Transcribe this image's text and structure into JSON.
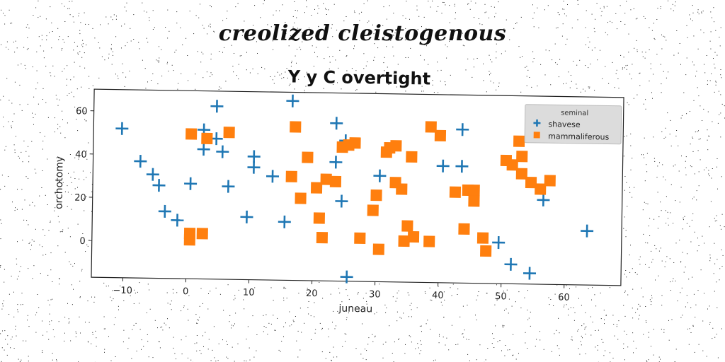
{
  "suptitle": "creolized cleistogenous",
  "chart_data": {
    "type": "scatter",
    "title": "Y y C overtight",
    "xlabel": "juneau",
    "ylabel": "orchotomy",
    "xlim": [
      -15,
      69
    ],
    "ylim": [
      -17,
      70
    ],
    "xticks": [
      -10,
      0,
      10,
      20,
      30,
      40,
      50,
      60
    ],
    "yticks": [
      0,
      20,
      40,
      60
    ],
    "grid": false,
    "legend": {
      "title": "seminal",
      "placement": "top-right"
    },
    "series": [
      {
        "name": "shavese",
        "marker": "plus",
        "color": "#1f77b4",
        "points": [
          [
            -10.5,
            52
          ],
          [
            -7.5,
            37
          ],
          [
            -5.5,
            31
          ],
          [
            -4.5,
            26
          ],
          [
            -3.5,
            14
          ],
          [
            -1.5,
            10
          ],
          [
            0.5,
            27
          ],
          [
            2.5,
            52
          ],
          [
            2.5,
            43
          ],
          [
            4.5,
            63
          ],
          [
            4.5,
            48
          ],
          [
            5.5,
            42
          ],
          [
            6.5,
            26
          ],
          [
            9.5,
            12
          ],
          [
            10.5,
            40
          ],
          [
            10.5,
            35
          ],
          [
            13.5,
            31
          ],
          [
            15.5,
            10
          ],
          [
            16.5,
            66
          ],
          [
            23.5,
            56
          ],
          [
            23.5,
            38
          ],
          [
            24.5,
            20
          ],
          [
            25,
            48
          ],
          [
            25.5,
            -15
          ],
          [
            30.5,
            32
          ],
          [
            43.5,
            54
          ],
          [
            43.5,
            37
          ],
          [
            40.5,
            37
          ],
          [
            49.5,
            2
          ],
          [
            51.5,
            -8
          ],
          [
            54.5,
            -12
          ],
          [
            56.5,
            22
          ],
          [
            63.5,
            8
          ]
        ]
      },
      {
        "name": "mammaliferous",
        "marker": "square",
        "color": "#ff7f0e",
        "points": [
          [
            0.5,
            50
          ],
          [
            0.5,
            4
          ],
          [
            0.5,
            1
          ],
          [
            2.5,
            4
          ],
          [
            3,
            48
          ],
          [
            6.5,
            51
          ],
          [
            16.5,
            31
          ],
          [
            17,
            54
          ],
          [
            18,
            21
          ],
          [
            19,
            40
          ],
          [
            20.5,
            26
          ],
          [
            21,
            12
          ],
          [
            21.5,
            3
          ],
          [
            22,
            30
          ],
          [
            23.5,
            29
          ],
          [
            24.5,
            45
          ],
          [
            25.5,
            46
          ],
          [
            26.5,
            47
          ],
          [
            27.5,
            3
          ],
          [
            29.5,
            16
          ],
          [
            30,
            23
          ],
          [
            30.5,
            -2
          ],
          [
            31.5,
            43
          ],
          [
            32,
            45
          ],
          [
            33,
            46
          ],
          [
            33,
            29
          ],
          [
            34,
            26
          ],
          [
            34.5,
            2
          ],
          [
            35,
            9
          ],
          [
            35.5,
            41
          ],
          [
            36,
            4
          ],
          [
            38.5,
            55
          ],
          [
            38.5,
            2
          ],
          [
            40,
            51
          ],
          [
            42.5,
            25
          ],
          [
            44,
            8
          ],
          [
            44.5,
            26
          ],
          [
            45.5,
            26
          ],
          [
            45.5,
            21
          ],
          [
            47,
            4
          ],
          [
            47.5,
            -2
          ],
          [
            50.5,
            40
          ],
          [
            51.5,
            38
          ],
          [
            52.5,
            49
          ],
          [
            53,
            34
          ],
          [
            53,
            42
          ],
          [
            54.5,
            30
          ],
          [
            56,
            27
          ],
          [
            57.5,
            31
          ]
        ]
      }
    ]
  }
}
